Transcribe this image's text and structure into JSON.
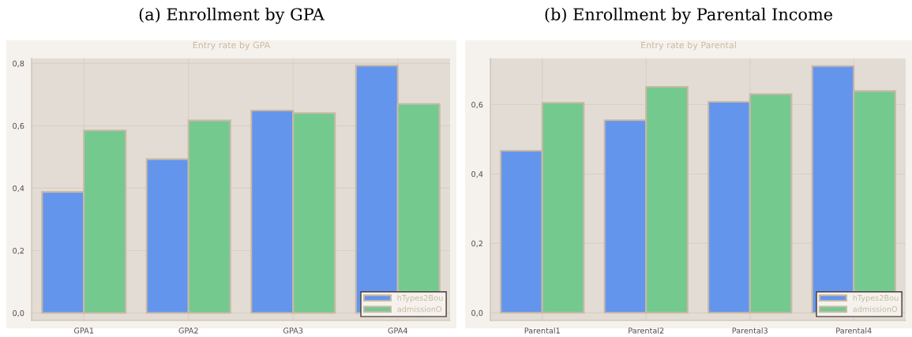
{
  "chart_data": [
    {
      "type": "bar",
      "title": "(a) Enrollment by GPA",
      "subtitle": "Entry rate by GPA",
      "categories": [
        "GPA1",
        "GPA2",
        "GPA3",
        "GPA4"
      ],
      "series": [
        {
          "name": "hTypes2Bou",
          "color": "#6495ed",
          "values": [
            0.388,
            0.493,
            0.649,
            0.793
          ]
        },
        {
          "name": "admissionO",
          "color": "#74c98f",
          "values": [
            0.585,
            0.617,
            0.641,
            0.67
          ]
        }
      ],
      "ylim": [
        -0.024,
        0.816
      ],
      "yticks": [
        {
          "value": 0,
          "label": "0,0"
        },
        {
          "value": 0.2,
          "label": "0,2"
        },
        {
          "value": 0.4,
          "label": "0,4"
        },
        {
          "value": 0.6,
          "label": "0,6"
        },
        {
          "value": 0.8,
          "label": "0,8"
        }
      ],
      "grid": true,
      "legend": "bottom right"
    },
    {
      "type": "bar",
      "title": "(b) Enrollment by Parental Income",
      "subtitle": "Entry rate by Parental",
      "categories": [
        "Parental1",
        "Parental2",
        "Parental3",
        "Parental4"
      ],
      "series": [
        {
          "name": "hTypes2Bou",
          "color": "#6495ed",
          "values": [
            0.467,
            0.555,
            0.608,
            0.711
          ]
        },
        {
          "name": "admissionO",
          "color": "#74c98f",
          "values": [
            0.605,
            0.651,
            0.63,
            0.639
          ]
        }
      ],
      "ylim": [
        -0.022,
        0.733
      ],
      "yticks": [
        {
          "value": 0,
          "label": "0,0"
        },
        {
          "value": 0.2,
          "label": "0,2"
        },
        {
          "value": 0.4,
          "label": "0,4"
        },
        {
          "value": 0.6,
          "label": "0,6"
        }
      ],
      "grid": true,
      "legend": "bottom right"
    }
  ]
}
